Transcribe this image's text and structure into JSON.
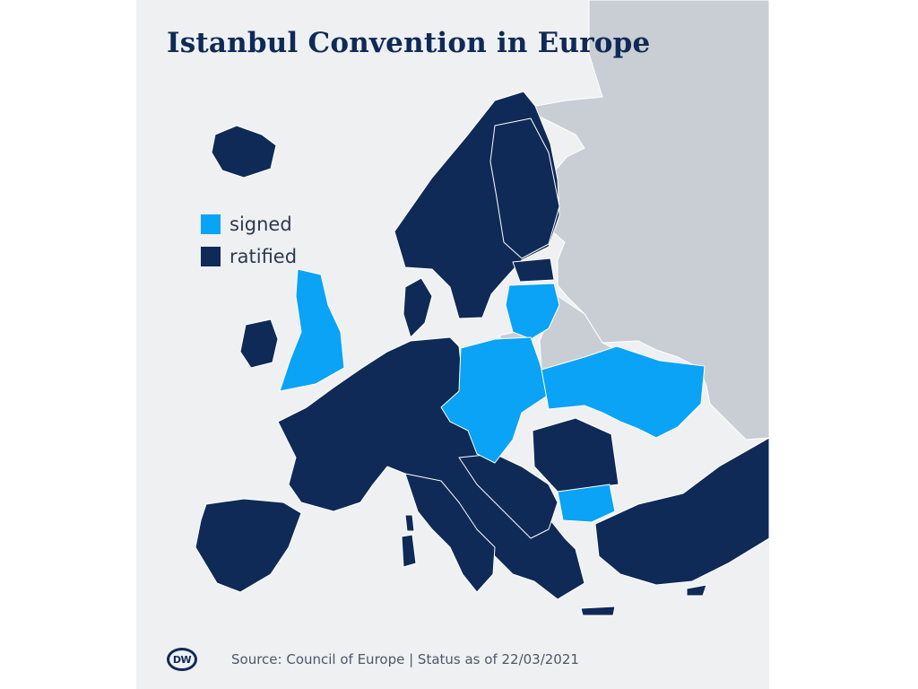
{
  "title": "Istanbul Convention in Europe",
  "legend": {
    "items": [
      {
        "label": "signed",
        "color": "#0aa3f5"
      },
      {
        "label": "ratified",
        "color": "#0f2a56"
      }
    ]
  },
  "colors": {
    "signed": "#0aa3f5",
    "ratified": "#0f2a56",
    "non_member": "#c9ced4",
    "sea": "#eef0f2",
    "border": "#ffffff"
  },
  "footer": {
    "logo_text": "DW",
    "source": "Source: Council of Europe | Status as of 22/03/2021"
  }
}
